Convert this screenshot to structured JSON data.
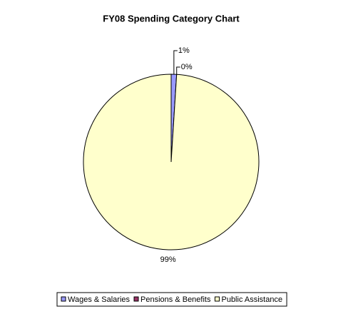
{
  "chart_data": {
    "type": "pie",
    "title": "FY08 Spending Category Chart",
    "categories": [
      "Wages & Salaries",
      "Pensions & Benefits",
      "Public Assistance"
    ],
    "values": [
      1,
      0,
      99
    ],
    "value_labels": [
      "1%",
      "0%",
      "99%"
    ],
    "colors": [
      "#9999ff",
      "#993366",
      "#ffffcc"
    ],
    "legend": "bottom"
  }
}
